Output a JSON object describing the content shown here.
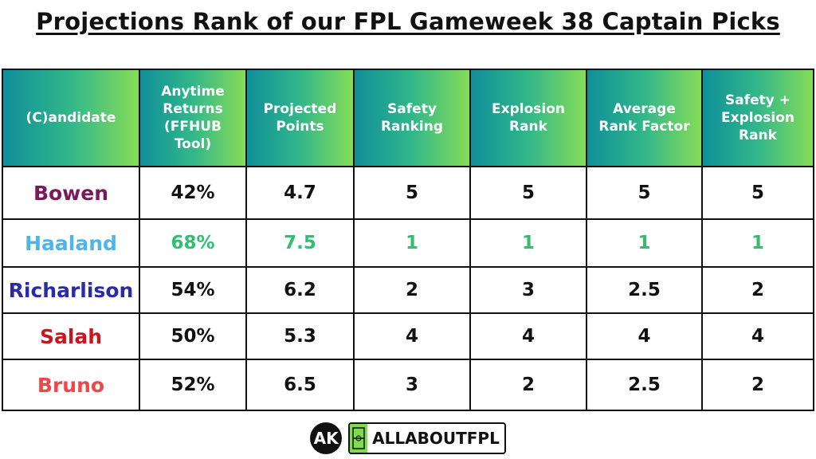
{
  "title": "Projections Rank of our FPL Gameweek 38 Captain Picks",
  "headers": [
    [
      "(C)andidate"
    ],
    [
      "Anytime",
      "Returns",
      "(FFHUB",
      "Tool)"
    ],
    [
      "Projected",
      "Points"
    ],
    [
      "Safety",
      "Ranking"
    ],
    [
      "Explosion",
      "Rank"
    ],
    [
      "Average",
      "Rank Factor"
    ],
    [
      "Safety +",
      "Explosion",
      "Rank"
    ]
  ],
  "rows": [
    {
      "name": "Bowen",
      "name_color": "#7a1a5a",
      "value_color": "#111111",
      "values": [
        "42%",
        "4.7",
        "5",
        "5",
        "5",
        "5"
      ]
    },
    {
      "name": "Haaland",
      "name_color": "#4db5ea",
      "value_color": "#2fbf71",
      "values": [
        "68%",
        "7.5",
        "1",
        "1",
        "1",
        "1"
      ]
    },
    {
      "name": "Richarlison",
      "name_color": "#2a2aa8",
      "value_color": "#111111",
      "values": [
        "54%",
        "6.2",
        "2",
        "3",
        "2.5",
        "2"
      ]
    },
    {
      "name": "Salah",
      "name_color": "#c8161e",
      "value_color": "#111111",
      "values": [
        "50%",
        "5.3",
        "4",
        "4",
        "4",
        "4"
      ]
    },
    {
      "name": "Bruno",
      "name_color": "#f04646",
      "value_color": "#111111",
      "values": [
        "52%",
        "6.5",
        "3",
        "2",
        "2.5",
        "2"
      ]
    }
  ],
  "footer": {
    "logo_text": "AK",
    "brand_text": "ALLABOUTFPL",
    "brand_icon": "football-pitch-icon"
  }
}
